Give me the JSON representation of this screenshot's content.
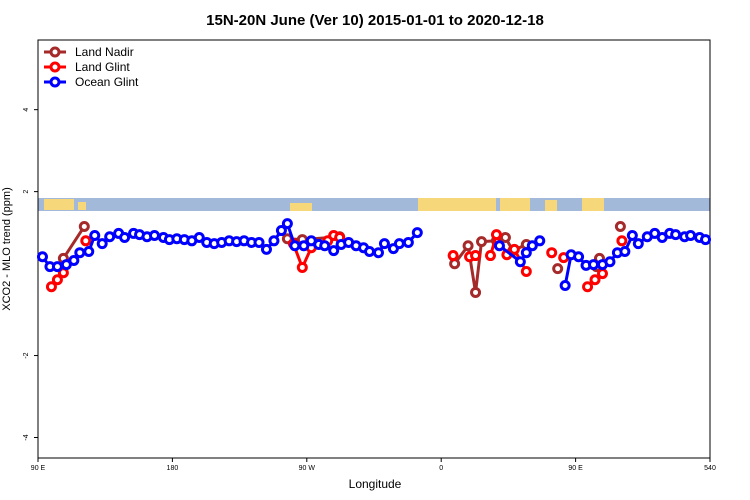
{
  "chart_data": {
    "type": "line",
    "title": "15N-20N June (Ver 10)   2015-01-01 to 2020-12-18",
    "x_label": "Longitude",
    "y_label": "XCO2 - MLO trend (ppm)",
    "xlim": [
      90,
      540
    ],
    "xticks": [
      {
        "value": 90,
        "label": "90 E"
      },
      180,
      {
        "value": 270,
        "label": "90 W"
      },
      {
        "value": 360,
        "label": "0"
      },
      {
        "value": 450,
        "label": "90 E"
      },
      540
    ],
    "ylim": [
      -4.5,
      5.7
    ],
    "yticks": [
      -4,
      -2,
      2,
      4
    ],
    "legend": "top-left",
    "series": [
      {
        "name": "Land Nadir",
        "color": "#a52a2a",
        "x": [
          107,
          121,
          null,
          257,
          267,
          292,
          null,
          369,
          378,
          383,
          387,
          397,
          403,
          408,
          417,
          null,
          438,
          null,
          464,
          466,
          null,
          480
        ],
        "values": [
          0.37,
          1.15,
          null,
          0.85,
          0.83,
          0.9,
          null,
          0.24,
          0.68,
          -0.46,
          0.78,
          0.8,
          0.88,
          0.56,
          0.71,
          null,
          0.12,
          null,
          0.17,
          0.37,
          null,
          1.15
        ]
      },
      {
        "name": "Land Glint",
        "color": "#ff0000",
        "x": [
          99,
          103,
          107,
          null,
          122,
          null,
          261,
          267,
          273,
          null,
          284,
          288,
          292,
          null,
          368,
          null,
          379,
          383,
          null,
          393,
          397,
          404,
          409,
          417,
          null,
          434,
          null,
          442,
          null,
          458,
          463,
          468,
          null,
          481
        ],
        "values": [
          -0.32,
          -0.15,
          0.02,
          null,
          0.8,
          null,
          0.73,
          0.15,
          0.63,
          null,
          0.8,
          0.93,
          0.88,
          null,
          0.44,
          null,
          0.41,
          0.44,
          null,
          0.44,
          0.95,
          0.46,
          0.59,
          0.05,
          null,
          0.51,
          null,
          0.39,
          null,
          -0.32,
          -0.15,
          0.0,
          null,
          0.8
        ]
      },
      {
        "name": "Ocean Glint",
        "color": "#0000ff",
        "x": [
          93,
          98,
          103,
          109,
          114,
          118,
          124,
          128,
          133,
          138,
          144,
          148,
          154,
          158,
          163,
          168,
          174,
          178,
          183,
          188,
          193,
          198,
          203,
          208,
          213,
          218,
          223,
          228,
          233,
          238,
          243,
          248,
          253,
          257,
          262,
          268,
          273,
          278,
          282,
          288,
          293,
          298,
          303,
          308,
          312,
          318,
          322,
          328,
          332,
          338,
          344,
          null,
          399,
          413,
          417,
          421,
          426,
          null,
          443,
          447,
          452,
          457,
          462,
          468,
          473,
          478,
          483,
          488,
          492,
          498,
          503,
          508,
          513,
          517,
          523,
          527,
          533,
          537
        ],
        "values": [
          0.41,
          0.17,
          0.17,
          0.22,
          0.32,
          0.51,
          0.54,
          0.93,
          0.73,
          0.9,
          0.98,
          0.88,
          0.98,
          0.95,
          0.9,
          0.93,
          0.88,
          0.83,
          0.85,
          0.83,
          0.8,
          0.88,
          0.76,
          0.73,
          0.76,
          0.8,
          0.78,
          0.8,
          0.76,
          0.76,
          0.59,
          0.8,
          1.05,
          1.22,
          0.68,
          0.68,
          0.8,
          0.71,
          0.68,
          0.56,
          0.71,
          0.76,
          0.68,
          0.63,
          0.54,
          0.51,
          0.73,
          0.61,
          0.73,
          0.76,
          1.0,
          null,
          0.68,
          0.29,
          0.51,
          0.68,
          0.8,
          null,
          -0.29,
          0.46,
          0.41,
          0.2,
          0.22,
          0.22,
          0.29,
          0.51,
          0.54,
          0.93,
          0.73,
          0.9,
          0.98,
          0.88,
          0.98,
          0.95,
          0.9,
          0.93,
          0.88,
          0.83
        ]
      }
    ]
  }
}
